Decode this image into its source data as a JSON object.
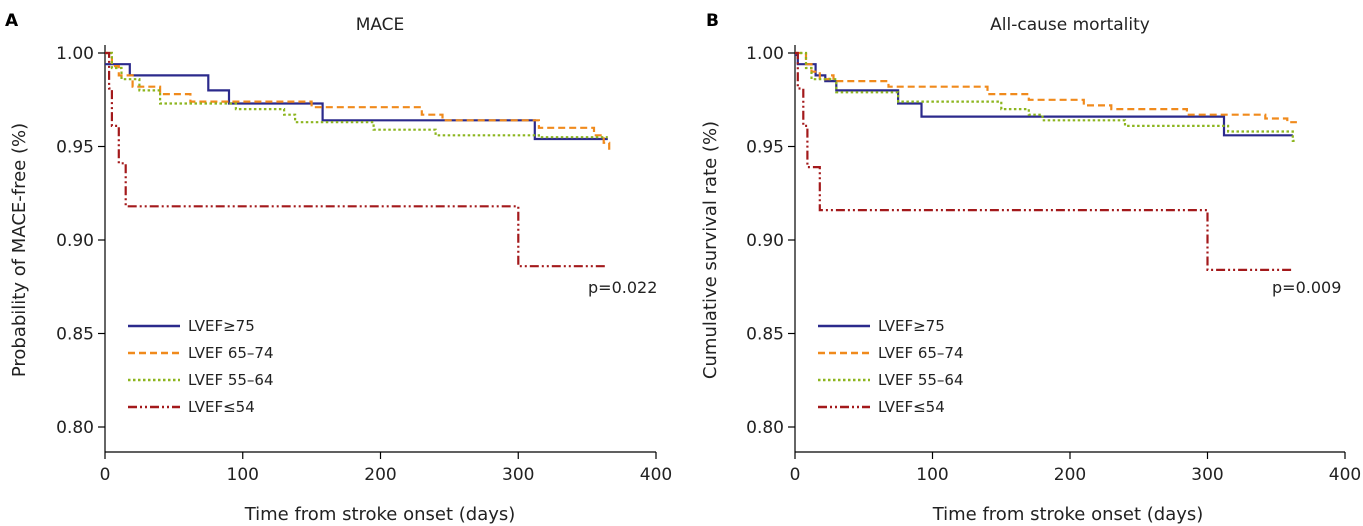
{
  "colors": {
    "LVEF>=75": "#2b2a8c",
    "LVEF 65-74": "#f08a1c",
    "LVEF 55-64": "#8cb51e",
    "LVEF<=54": "#a3191b"
  },
  "dashes": {
    "LVEF>=75": "",
    "LVEF 65-74": "7,4",
    "LVEF 55-64": "2.5,2.5",
    "LVEF<=54": "9,3,2,3,2,3"
  },
  "chart_data": [
    {
      "type": "line",
      "step": true,
      "panel_letter": "A",
      "title": "MACE",
      "xlabel": "Time from stroke onset (days)",
      "ylabel": "Probability of MACE-free (%)",
      "xlim": [
        0,
        400
      ],
      "ylim": [
        0.8,
        1.0
      ],
      "xticks": [
        0,
        100,
        200,
        300,
        400
      ],
      "yticks": [
        0.8,
        0.85,
        0.9,
        0.95,
        1.0
      ],
      "ytick_labels": [
        "0.80",
        "0.85",
        "0.90",
        "0.95",
        "1.00"
      ],
      "annotation": "p=0.022",
      "legend_position": "lower-left",
      "series": [
        {
          "name": "LVEF≥75",
          "key": "LVEF>=75",
          "points": [
            [
              0,
              0.994
            ],
            [
              18,
              0.994
            ],
            [
              18,
              0.988
            ],
            [
              75,
              0.988
            ],
            [
              75,
              0.98
            ],
            [
              90,
              0.98
            ],
            [
              90,
              0.973
            ],
            [
              158,
              0.973
            ],
            [
              158,
              0.964
            ],
            [
              312,
              0.964
            ],
            [
              312,
              0.954
            ],
            [
              365,
              0.954
            ]
          ]
        },
        {
          "name": "LVEF 65–74",
          "key": "LVEF 65-74",
          "points": [
            [
              0,
              1.0
            ],
            [
              5,
              1.0
            ],
            [
              5,
              0.993
            ],
            [
              10,
              0.993
            ],
            [
              10,
              0.988
            ],
            [
              20,
              0.988
            ],
            [
              20,
              0.982
            ],
            [
              40,
              0.982
            ],
            [
              40,
              0.978
            ],
            [
              62,
              0.978
            ],
            [
              62,
              0.974
            ],
            [
              150,
              0.974
            ],
            [
              150,
              0.971
            ],
            [
              230,
              0.971
            ],
            [
              230,
              0.967
            ],
            [
              245,
              0.967
            ],
            [
              245,
              0.964
            ],
            [
              315,
              0.964
            ],
            [
              315,
              0.96
            ],
            [
              355,
              0.96
            ],
            [
              355,
              0.956
            ],
            [
              362,
              0.956
            ],
            [
              362,
              0.952
            ],
            [
              366,
              0.952
            ],
            [
              366,
              0.948
            ],
            [
              368,
              0.948
            ]
          ]
        },
        {
          "name": "LVEF 55–64",
          "key": "LVEF 55-64",
          "points": [
            [
              0,
              1.0
            ],
            [
              5,
              1.0
            ],
            [
              5,
              0.992
            ],
            [
              12,
              0.992
            ],
            [
              12,
              0.986
            ],
            [
              25,
              0.986
            ],
            [
              25,
              0.98
            ],
            [
              40,
              0.98
            ],
            [
              40,
              0.973
            ],
            [
              95,
              0.973
            ],
            [
              95,
              0.97
            ],
            [
              130,
              0.97
            ],
            [
              130,
              0.967
            ],
            [
              138,
              0.967
            ],
            [
              138,
              0.963
            ],
            [
              195,
              0.963
            ],
            [
              195,
              0.959
            ],
            [
              240,
              0.959
            ],
            [
              240,
              0.956
            ],
            [
              315,
              0.956
            ],
            [
              315,
              0.955
            ],
            [
              365,
              0.955
            ]
          ]
        },
        {
          "name": "LVEF≤54",
          "key": "LVEF<=54",
          "points": [
            [
              0,
              1.0
            ],
            [
              3,
              1.0
            ],
            [
              3,
              0.981
            ],
            [
              5,
              0.981
            ],
            [
              5,
              0.961
            ],
            [
              10,
              0.961
            ],
            [
              10,
              0.941
            ],
            [
              15,
              0.941
            ],
            [
              15,
              0.918
            ],
            [
              300,
              0.918
            ],
            [
              300,
              0.886
            ],
            [
              363,
              0.886
            ]
          ]
        }
      ]
    },
    {
      "type": "line",
      "step": true,
      "panel_letter": "B",
      "title": "All-cause mortality",
      "xlabel": "Time from stroke onset (days)",
      "ylabel": "Cumulative survival rate (%)",
      "xlim": [
        0,
        400
      ],
      "ylim": [
        0.8,
        1.0
      ],
      "xticks": [
        0,
        100,
        200,
        300,
        400
      ],
      "yticks": [
        0.8,
        0.85,
        0.9,
        0.95,
        1.0
      ],
      "ytick_labels": [
        "0.80",
        "0.85",
        "0.90",
        "0.95",
        "1.00"
      ],
      "annotation": "p=0.009",
      "legend_position": "lower-left",
      "series": [
        {
          "name": "LVEF≥75",
          "key": "LVEF>=75",
          "points": [
            [
              0,
              0.999
            ],
            [
              2,
              0.999
            ],
            [
              2,
              0.994
            ],
            [
              15,
              0.994
            ],
            [
              15,
              0.988
            ],
            [
              22,
              0.988
            ],
            [
              22,
              0.985
            ],
            [
              30,
              0.985
            ],
            [
              30,
              0.98
            ],
            [
              75,
              0.98
            ],
            [
              75,
              0.973
            ],
            [
              92,
              0.973
            ],
            [
              92,
              0.966
            ],
            [
              312,
              0.966
            ],
            [
              312,
              0.956
            ],
            [
              362,
              0.956
            ]
          ]
        },
        {
          "name": "LVEF 65–74",
          "key": "LVEF 65-74",
          "points": [
            [
              0,
              1.0
            ],
            [
              8,
              1.0
            ],
            [
              8,
              0.994
            ],
            [
              12,
              0.994
            ],
            [
              12,
              0.99
            ],
            [
              18,
              0.99
            ],
            [
              18,
              0.986
            ],
            [
              25,
              0.986
            ],
            [
              25,
              0.988
            ],
            [
              28,
              0.988
            ],
            [
              28,
              0.985
            ],
            [
              68,
              0.985
            ],
            [
              68,
              0.982
            ],
            [
              140,
              0.982
            ],
            [
              140,
              0.978
            ],
            [
              170,
              0.978
            ],
            [
              170,
              0.975
            ],
            [
              210,
              0.975
            ],
            [
              210,
              0.972
            ],
            [
              230,
              0.972
            ],
            [
              230,
              0.97
            ],
            [
              285,
              0.97
            ],
            [
              285,
              0.967
            ],
            [
              342,
              0.967
            ],
            [
              342,
              0.965
            ],
            [
              358,
              0.965
            ],
            [
              358,
              0.963
            ],
            [
              365,
              0.963
            ]
          ]
        },
        {
          "name": "LVEF 55–64",
          "key": "LVEF 55-64",
          "points": [
            [
              0,
              1.0
            ],
            [
              8,
              1.0
            ],
            [
              8,
              0.992
            ],
            [
              12,
              0.992
            ],
            [
              12,
              0.986
            ],
            [
              30,
              0.986
            ],
            [
              30,
              0.979
            ],
            [
              75,
              0.979
            ],
            [
              75,
              0.974
            ],
            [
              150,
              0.974
            ],
            [
              150,
              0.97
            ],
            [
              170,
              0.97
            ],
            [
              170,
              0.967
            ],
            [
              180,
              0.967
            ],
            [
              180,
              0.964
            ],
            [
              240,
              0.964
            ],
            [
              240,
              0.961
            ],
            [
              315,
              0.961
            ],
            [
              315,
              0.958
            ],
            [
              362,
              0.958
            ],
            [
              362,
              0.953
            ],
            [
              365,
              0.953
            ]
          ]
        },
        {
          "name": "LVEF≤54",
          "key": "LVEF<=54",
          "points": [
            [
              0,
              1.0
            ],
            [
              2,
              1.0
            ],
            [
              2,
              0.981
            ],
            [
              6,
              0.981
            ],
            [
              6,
              0.961
            ],
            [
              9,
              0.961
            ],
            [
              9,
              0.939
            ],
            [
              18,
              0.939
            ],
            [
              18,
              0.916
            ],
            [
              300,
              0.916
            ],
            [
              300,
              0.884
            ],
            [
              362,
              0.884
            ]
          ]
        }
      ]
    }
  ]
}
